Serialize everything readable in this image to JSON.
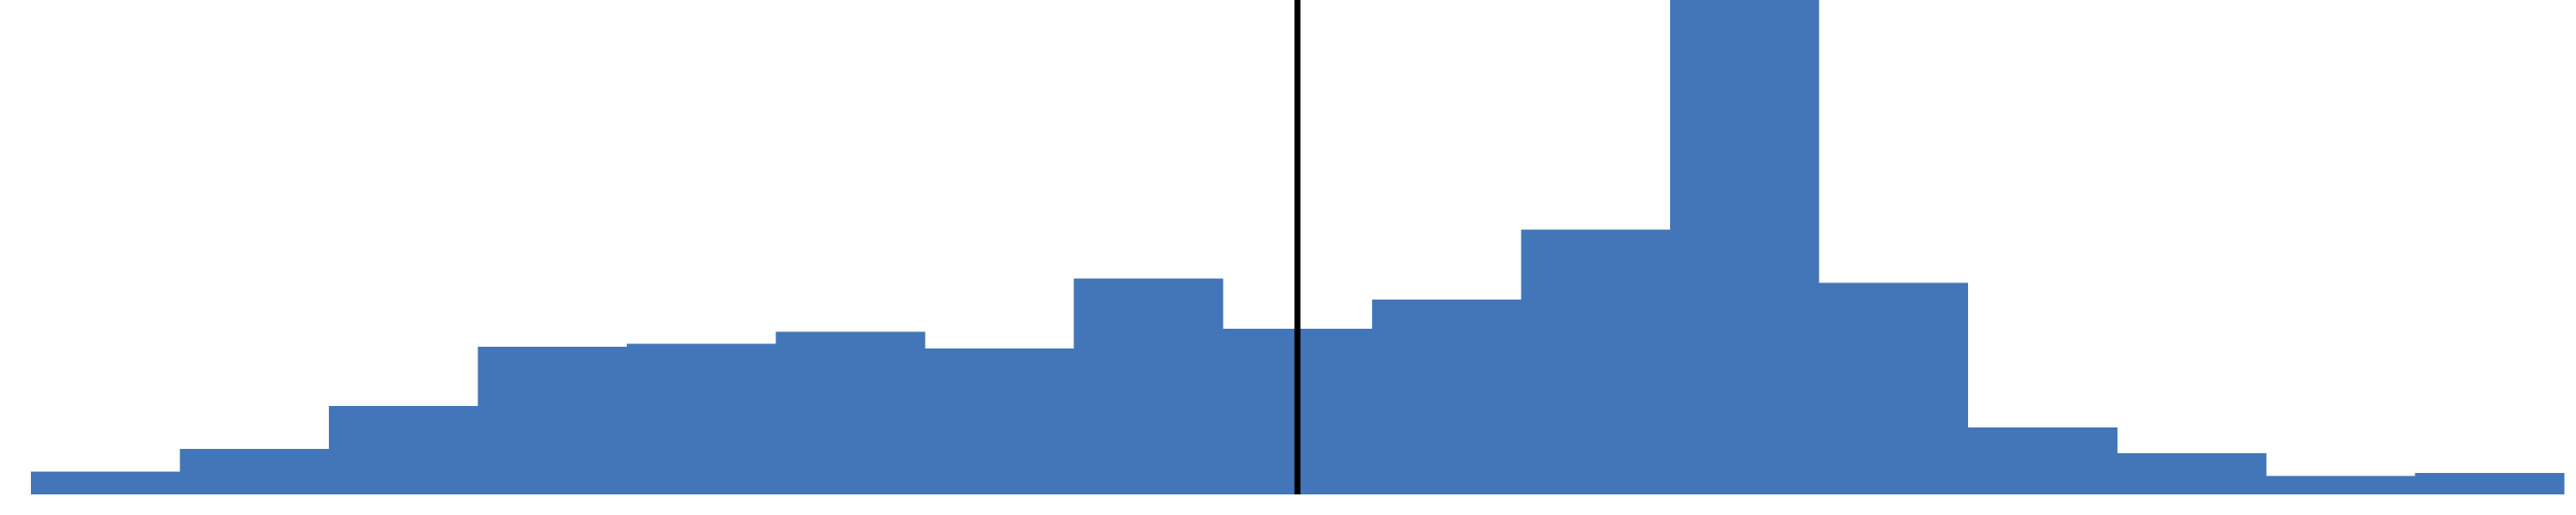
{
  "chart_data": {
    "type": "bar",
    "title": "",
    "xlabel": "",
    "ylabel": "",
    "bins": 17,
    "values": [
      15,
      30,
      58,
      97,
      99,
      107,
      96,
      142,
      109,
      128,
      174,
      325,
      139,
      44,
      27,
      12,
      14
    ],
    "ylim": [
      0,
      325
    ],
    "marker_bin_position": 8.5,
    "grid": false,
    "legend": "none",
    "colors": {
      "bar": "#4376B8",
      "marker_line": "#000000",
      "background": "#FFFFFF"
    }
  }
}
